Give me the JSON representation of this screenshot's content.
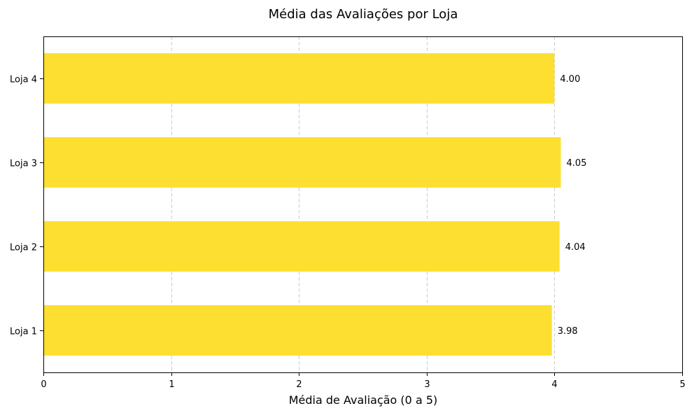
{
  "chart_data": {
    "type": "bar",
    "orientation": "horizontal",
    "title": "Média das Avaliações por Loja",
    "xlabel": "Média de Avaliação (0 a 5)",
    "ylabel": "",
    "categories": [
      "Loja 1",
      "Loja 2",
      "Loja 3",
      "Loja 4"
    ],
    "values": [
      3.98,
      4.04,
      4.05,
      4.0
    ],
    "value_labels": [
      "3.98",
      "4.04",
      "4.05",
      "4.00"
    ],
    "xlim": [
      0,
      5
    ],
    "xticks": [
      0,
      1,
      2,
      3,
      4,
      5
    ],
    "xtick_labels": [
      "0",
      "1",
      "2",
      "3",
      "4",
      "5"
    ],
    "grid": "x-dashed",
    "legend": "none",
    "bar_color": "#fddf31",
    "grid_color": "#cccccc"
  }
}
